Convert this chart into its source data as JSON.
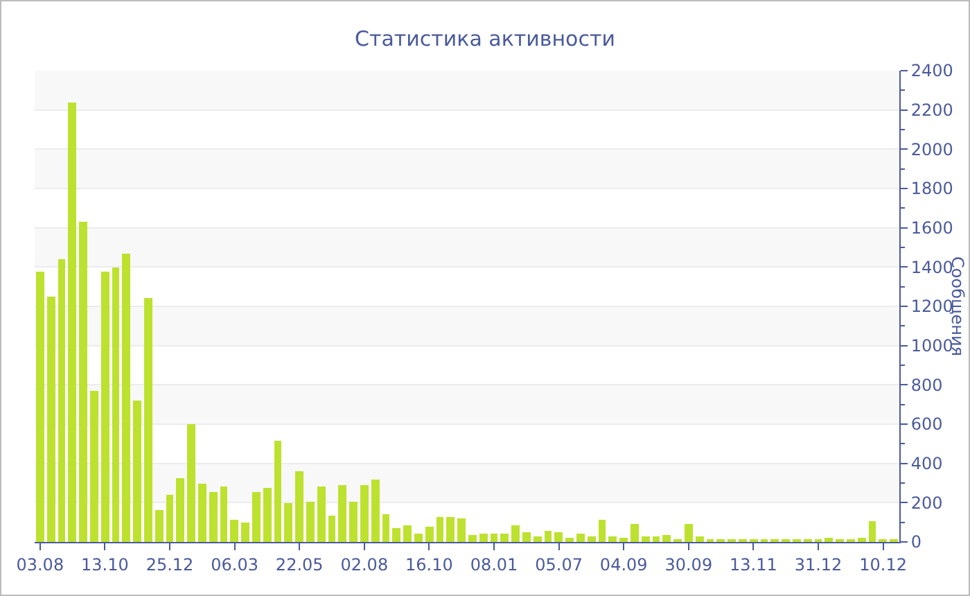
{
  "chart_data": {
    "type": "bar",
    "title": "Статистика активности",
    "ylabel": "Сообщения",
    "categories": [
      "03.08",
      null,
      null,
      null,
      null,
      null,
      "13.10",
      null,
      null,
      null,
      null,
      null,
      "25.12",
      null,
      null,
      null,
      null,
      null,
      "06.03",
      null,
      null,
      null,
      null,
      null,
      "22.05",
      null,
      null,
      null,
      null,
      null,
      "02.08",
      null,
      null,
      null,
      null,
      null,
      "16.10",
      null,
      null,
      null,
      null,
      null,
      "08.01",
      null,
      null,
      null,
      null,
      null,
      "05.07",
      null,
      null,
      null,
      null,
      null,
      "04.09",
      null,
      null,
      null,
      null,
      null,
      "30.09",
      null,
      null,
      null,
      null,
      null,
      "13.11",
      null,
      null,
      null,
      null,
      null,
      "31.12",
      null,
      null,
      null,
      null,
      null,
      "10.12",
      null
    ],
    "values": [
      1380,
      1250,
      1440,
      2240,
      1630,
      770,
      1380,
      1400,
      1470,
      720,
      1240,
      160,
      240,
      325,
      600,
      295,
      255,
      280,
      110,
      100,
      255,
      275,
      515,
      200,
      360,
      205,
      285,
      135,
      290,
      205,
      290,
      320,
      140,
      70,
      85,
      45,
      80,
      130,
      125,
      120,
      35,
      40,
      40,
      40,
      85,
      50,
      30,
      55,
      50,
      20,
      40,
      30,
      110,
      25,
      20,
      95,
      25,
      30,
      35,
      10,
      95,
      25,
      10,
      15,
      8,
      10,
      10,
      15,
      8,
      8,
      10,
      10,
      15,
      20,
      15,
      8,
      20,
      105,
      10,
      10
    ],
    "color": "#bde12f",
    "ylim": [
      0,
      2400
    ],
    "yticks": [
      0,
      200,
      400,
      600,
      800,
      1000,
      1200,
      1400,
      1600,
      1800,
      2000,
      2200,
      2400
    ],
    "grid": true
  }
}
